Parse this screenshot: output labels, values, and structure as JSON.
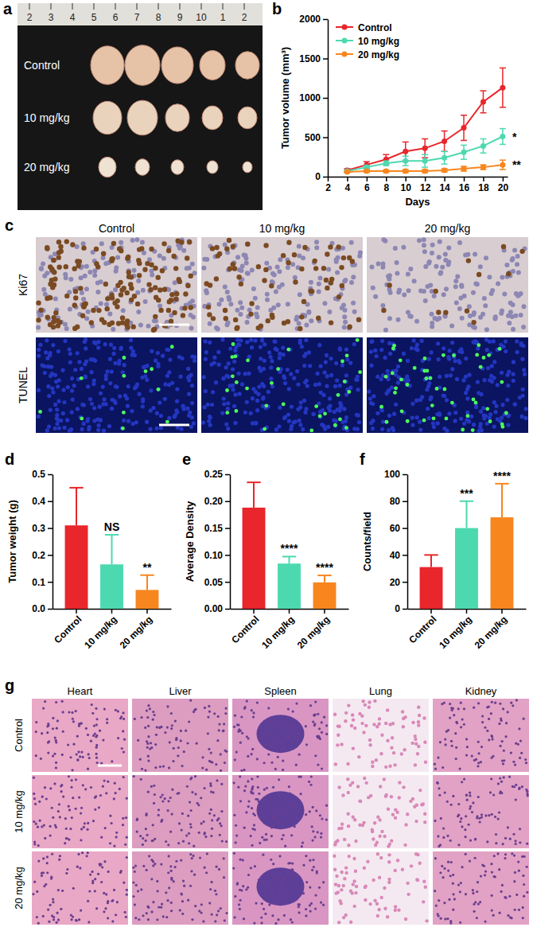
{
  "chart_data": [
    {
      "panel": "b",
      "type": "line",
      "x": [
        4,
        6,
        8,
        10,
        12,
        14,
        16,
        18,
        20
      ],
      "xlim": [
        2,
        20.5
      ],
      "xticks": [
        2,
        4,
        6,
        8,
        10,
        12,
        14,
        16,
        18,
        20
      ],
      "ylim": [
        0,
        2000
      ],
      "yticks": [
        0,
        500,
        1000,
        1500,
        2000
      ],
      "x_label": "Days",
      "y_label": "Tumor volume (mm³)",
      "legend": "upper left",
      "series": [
        {
          "name": "Control",
          "color": "#e8262b",
          "marker": "circle",
          "values": [
            80,
            150,
            220,
            320,
            360,
            450,
            620,
            950,
            1130
          ],
          "errors": [
            20,
            40,
            60,
            120,
            120,
            130,
            160,
            140,
            250
          ]
        },
        {
          "name": "10 mg/kg",
          "color": "#4dd9b0",
          "marker": "circle",
          "values": [
            70,
            120,
            170,
            200,
            200,
            240,
            310,
            390,
            510
          ],
          "errors": [
            10,
            20,
            30,
            60,
            80,
            80,
            90,
            90,
            100
          ],
          "annotation": "*"
        },
        {
          "name": "20 mg/kg",
          "color": "#f7861f",
          "marker": "circle",
          "values": [
            60,
            70,
            70,
            70,
            70,
            80,
            100,
            120,
            150
          ],
          "errors": [
            10,
            15,
            15,
            20,
            20,
            20,
            30,
            30,
            60
          ],
          "annotation": "**"
        }
      ]
    },
    {
      "panel": "d",
      "type": "bar",
      "categories": [
        "Control",
        "10 mg/kg",
        "20 mg/kg"
      ],
      "values": [
        0.31,
        0.165,
        0.07
      ],
      "errors": [
        0.14,
        0.11,
        0.055
      ],
      "colors": [
        "#e8262b",
        "#4dd9b0",
        "#f7861f"
      ],
      "ylim": [
        0,
        0.5
      ],
      "yticks": [
        {
          "value": 0,
          "label": "0.0"
        },
        0.1,
        0.2,
        0.3,
        0.4,
        0.5
      ],
      "y_label": "Tumor weight (g)",
      "annotations": [
        null,
        "NS",
        "**"
      ]
    },
    {
      "panel": "e",
      "type": "bar",
      "categories": [
        "Control",
        "10 mg/kg",
        "20 mg/kg"
      ],
      "values": [
        0.188,
        0.084,
        0.049
      ],
      "errors": [
        0.047,
        0.013,
        0.013
      ],
      "colors": [
        "#e8262b",
        "#4dd9b0",
        "#f7861f"
      ],
      "ylim": [
        0,
        0.25
      ],
      "yticks": [
        {
          "value": 0,
          "label": "0.00"
        },
        0.05,
        {
          "value": 0.1,
          "label": "0.10"
        },
        0.15,
        {
          "value": 0.2,
          "label": "0.20"
        },
        0.25
      ],
      "y_label": "Average Density",
      "annotations": [
        null,
        "****",
        "****"
      ]
    },
    {
      "panel": "f",
      "type": "bar",
      "categories": [
        "Control",
        "10 mg/kg",
        "20 mg/kg"
      ],
      "values": [
        31,
        60,
        68
      ],
      "errors": [
        9,
        20,
        25
      ],
      "colors": [
        "#e8262b",
        "#4dd9b0",
        "#f7861f"
      ],
      "ylim": [
        0,
        100
      ],
      "yticks": [
        0,
        20,
        40,
        60,
        80,
        100
      ],
      "y_label": "Counts/field",
      "annotations": [
        null,
        "***",
        "****"
      ]
    }
  ],
  "image_panels": [
    {
      "panel": "a",
      "rows": [
        "Control",
        "10 mg/kg",
        "20 mg/kg"
      ],
      "ruler": [
        "2",
        "3",
        "4",
        "5",
        "6",
        "7",
        "8",
        "9",
        "10",
        "1",
        "2"
      ]
    },
    {
      "panel": "c",
      "columns": [
        "Control",
        "10 mg/kg",
        "20 mg/kg"
      ],
      "rows": [
        "Ki67",
        "TUNEL"
      ]
    },
    {
      "panel": "g",
      "columns": [
        "Heart",
        "Liver",
        "Spleen",
        "Lung",
        "Kidney"
      ],
      "rows": [
        "Control",
        "10 mg/kg",
        "20 mg/kg"
      ]
    }
  ]
}
